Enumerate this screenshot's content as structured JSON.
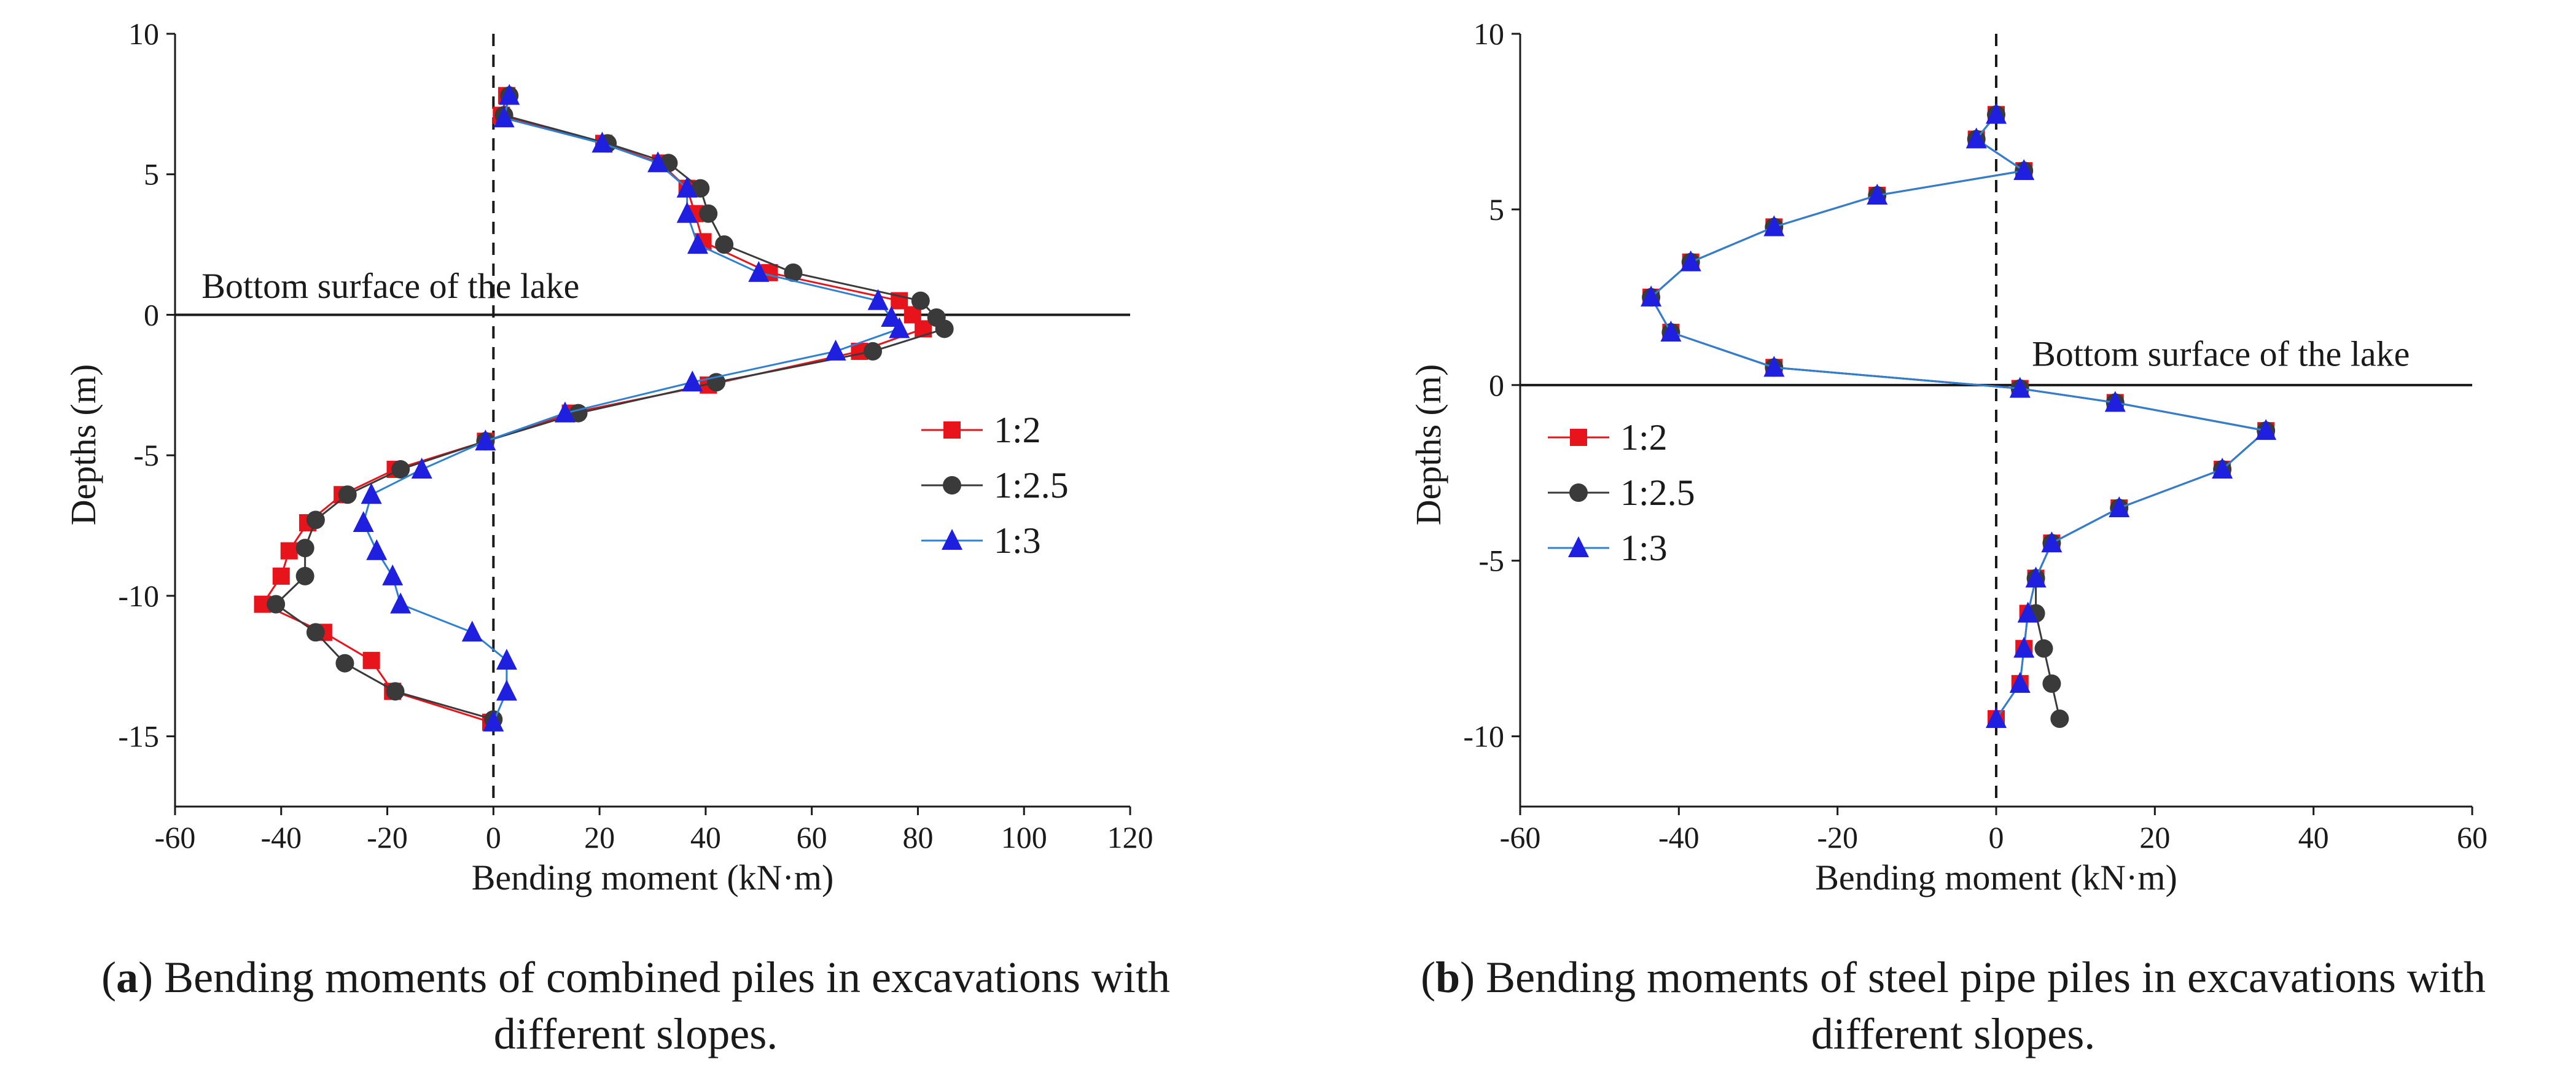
{
  "chart_data": [
    {
      "type": "line",
      "panel": "a",
      "xlabel": "Bending moment (kN·m)",
      "ylabel": "Depths (m)",
      "xlim": [
        -60,
        120
      ],
      "ylim": [
        -17.5,
        10
      ],
      "xticks": [
        -60,
        -40,
        -20,
        0,
        20,
        40,
        60,
        80,
        100,
        120
      ],
      "yticks": [
        10,
        5,
        0,
        -5,
        -10,
        -15
      ],
      "reference_lines": {
        "horizontal_y": 0,
        "vertical_dashed_x": 0
      },
      "annotation": {
        "text": "Bottom surface of the lake",
        "x": -55,
        "y": 0.6
      },
      "legend_position": "right-middle",
      "series": [
        {
          "name": "1:2",
          "color": "#e8141c",
          "marker": "square",
          "x": [
            2.5,
            1.5,
            20.8,
            31.5,
            36.5,
            38.0,
            39.5,
            52.0,
            76.5,
            79.0,
            81.0,
            69.0,
            40.5,
            14.5,
            -1.5,
            -18.5,
            -28.5,
            -35.0,
            -38.5,
            -40.0,
            -43.5,
            -32.0,
            -23.0,
            -19.0,
            -0.5
          ],
          "y": [
            7.8,
            7.1,
            6.1,
            5.4,
            4.5,
            3.6,
            2.6,
            1.5,
            0.5,
            0.0,
            -0.5,
            -1.3,
            -2.5,
            -3.5,
            -4.5,
            -5.5,
            -6.4,
            -7.4,
            -8.4,
            -9.3,
            -10.3,
            -11.3,
            -12.3,
            -13.4,
            -14.5
          ]
        },
        {
          "name": "1:2.5",
          "color": "#3a3a3a",
          "marker": "circle",
          "x": [
            3.0,
            2.0,
            21.5,
            33.0,
            39.0,
            40.5,
            43.5,
            56.5,
            80.5,
            83.5,
            85.0,
            71.5,
            42.0,
            16.0,
            -1.5,
            -17.5,
            -27.5,
            -33.5,
            -35.5,
            -35.5,
            -41.0,
            -33.5,
            -28.0,
            -18.5,
            0.0
          ],
          "y": [
            7.8,
            7.1,
            6.1,
            5.4,
            4.5,
            3.6,
            2.5,
            1.5,
            0.5,
            -0.1,
            -0.5,
            -1.3,
            -2.4,
            -3.5,
            -4.5,
            -5.5,
            -6.4,
            -7.3,
            -8.3,
            -9.3,
            -10.3,
            -11.3,
            -12.4,
            -13.4,
            -14.4
          ]
        },
        {
          "name": "1:3",
          "color": "#1f1fe0",
          "marker": "triangle",
          "line_color": "#2f80d0",
          "x": [
            3.0,
            2.0,
            20.5,
            31.0,
            36.5,
            36.5,
            38.5,
            50.0,
            72.5,
            75.0,
            76.5,
            64.5,
            37.5,
            13.5,
            -1.5,
            -13.5,
            -23.0,
            -24.5,
            -22.0,
            -19.0,
            -17.5,
            -4.0,
            2.5,
            2.5,
            0.0
          ],
          "y": [
            7.8,
            7.0,
            6.1,
            5.4,
            4.5,
            3.6,
            2.5,
            1.5,
            0.5,
            -0.1,
            -0.5,
            -1.3,
            -2.4,
            -3.5,
            -4.5,
            -5.5,
            -6.4,
            -7.4,
            -8.4,
            -9.3,
            -10.3,
            -11.3,
            -12.3,
            -13.4,
            -14.5
          ]
        }
      ]
    },
    {
      "type": "line",
      "panel": "b",
      "xlabel": "Bending moment (kN·m)",
      "ylabel": "Depths (m)",
      "xlim": [
        -60,
        60
      ],
      "ylim": [
        -12,
        10
      ],
      "xticks": [
        -60,
        -40,
        -20,
        0,
        20,
        40,
        60
      ],
      "yticks": [
        10,
        5,
        0,
        -5,
        -10
      ],
      "reference_lines": {
        "horizontal_y": 0,
        "vertical_dashed_x": 0
      },
      "annotation": {
        "text": "Bottom surface of the lake",
        "x": 4.5,
        "y": 0.55
      },
      "legend_position": "left-middle",
      "series": [
        {
          "name": "1:2",
          "color": "#e8141c",
          "marker": "square",
          "x": [
            0.0,
            -2.5,
            3.5,
            -15.0,
            -28.0,
            -38.5,
            -43.5,
            -41.0,
            -28.0,
            3.0,
            15.0,
            34.0,
            28.5,
            15.5,
            7.0,
            5.0,
            4.0,
            3.5,
            3.0,
            0.0
          ],
          "y": [
            7.7,
            7.0,
            6.1,
            5.4,
            4.5,
            3.5,
            2.5,
            1.5,
            0.5,
            -0.1,
            -0.5,
            -1.3,
            -2.4,
            -3.5,
            -4.5,
            -5.5,
            -6.5,
            -7.5,
            -8.5,
            -9.5
          ]
        },
        {
          "name": "1:2.5",
          "color": "#3a3a3a",
          "marker": "circle",
          "x": [
            0.0,
            -2.5,
            3.5,
            -15.0,
            -28.0,
            -38.5,
            -43.5,
            -41.0,
            -28.0,
            3.0,
            15.0,
            34.0,
            28.5,
            15.5,
            7.0,
            5.0,
            5.0,
            6.0,
            7.0,
            8.0
          ],
          "y": [
            7.7,
            7.0,
            6.1,
            5.4,
            4.5,
            3.5,
            2.5,
            1.5,
            0.5,
            -0.1,
            -0.5,
            -1.3,
            -2.4,
            -3.5,
            -4.5,
            -5.5,
            -6.5,
            -7.5,
            -8.5,
            -9.5
          ]
        },
        {
          "name": "1:3",
          "color": "#1f1fe0",
          "marker": "triangle",
          "line_color": "#2f80d0",
          "x": [
            0.0,
            -2.5,
            3.5,
            -15.0,
            -28.0,
            -38.5,
            -43.5,
            -41.0,
            -28.0,
            3.0,
            15.0,
            34.0,
            28.5,
            15.5,
            7.0,
            5.0,
            4.0,
            3.5,
            3.0,
            0.0
          ],
          "y": [
            7.7,
            7.0,
            6.1,
            5.4,
            4.5,
            3.5,
            2.5,
            1.5,
            0.5,
            -0.1,
            -0.5,
            -1.3,
            -2.4,
            -3.5,
            -4.5,
            -5.5,
            -6.5,
            -7.5,
            -8.5,
            -9.5
          ]
        }
      ]
    }
  ],
  "captions": {
    "a": {
      "letter": "a",
      "line1": ") Bending moments of combined piles in excavations with",
      "line2": "different slopes."
    },
    "b": {
      "letter": "b",
      "line1": ") Bending moments of steel pipe piles in excavations with",
      "line2": "different slopes."
    }
  },
  "colors": {
    "axis": "#1a1a1a",
    "red": "#e8141c",
    "dark": "#3a3a3a",
    "blue_marker": "#1f1fe0",
    "blue_line": "#2f80d0"
  }
}
